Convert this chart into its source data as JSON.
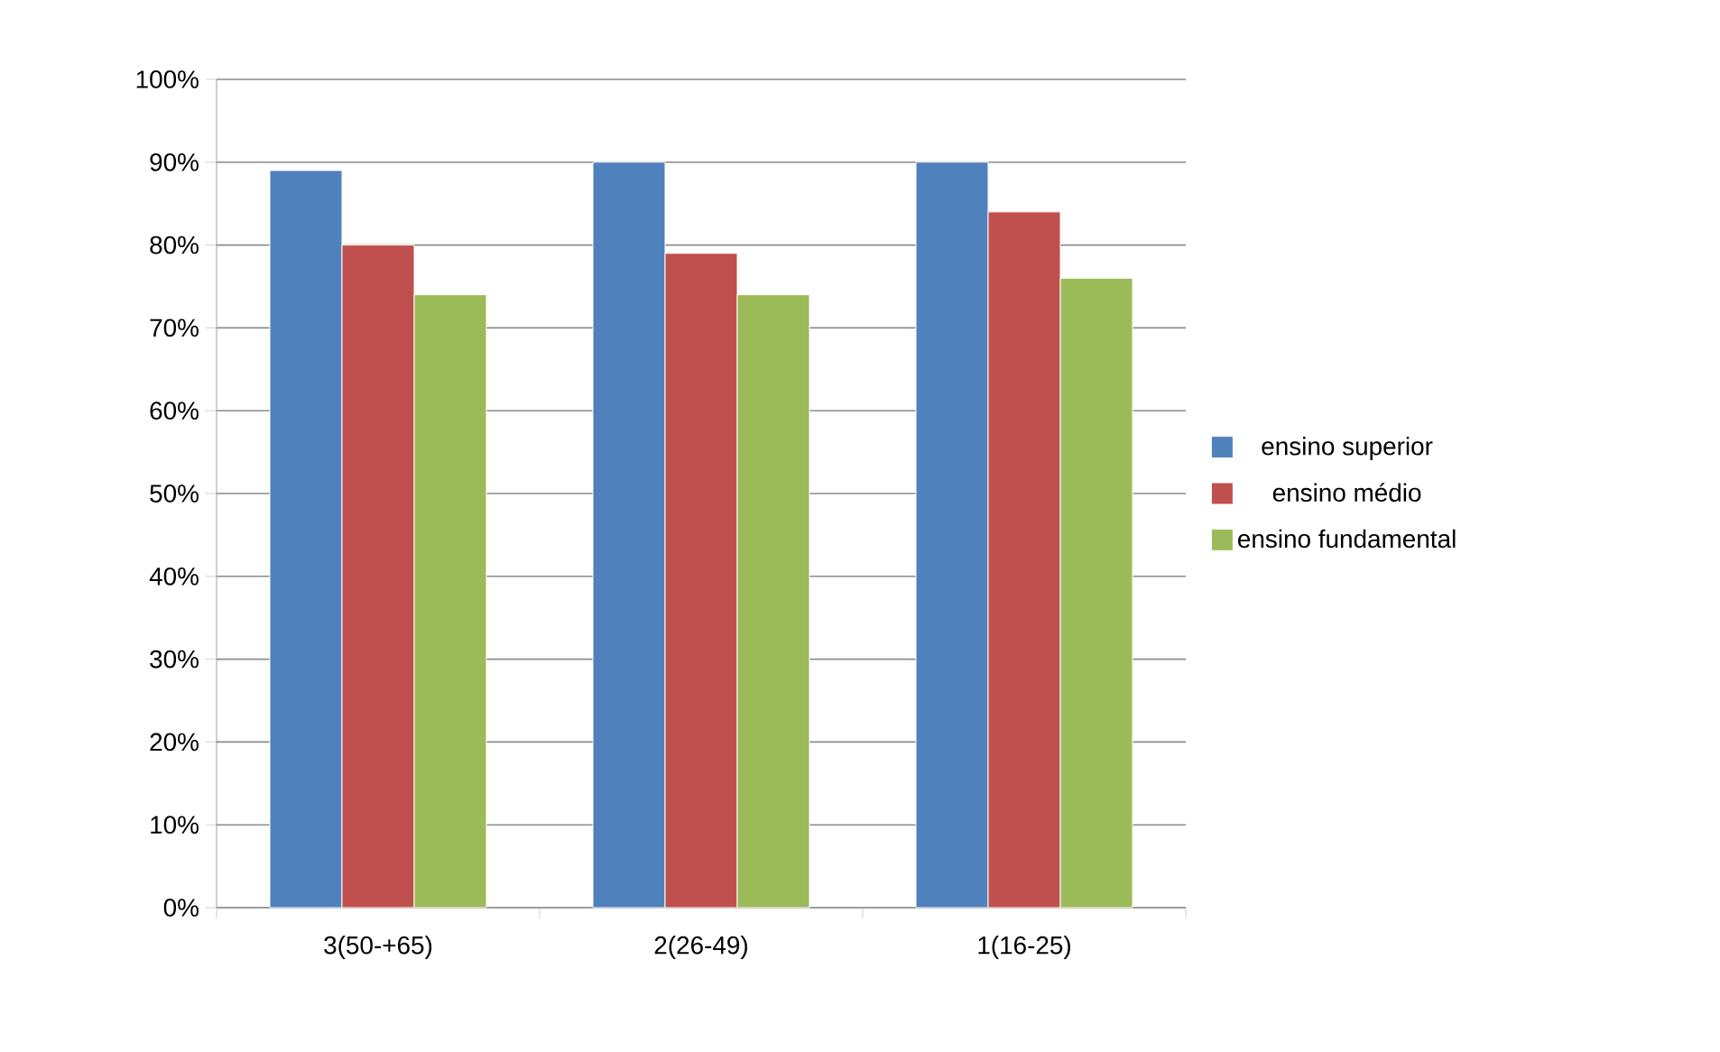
{
  "chart_data": {
    "type": "bar",
    "categories": [
      "3(50-+65)",
      "2(26-49)",
      "1(16-25)"
    ],
    "series": [
      {
        "name": "ensino superior",
        "color": "#4f81bd",
        "values": [
          89,
          90,
          90
        ]
      },
      {
        "name": "ensino médio",
        "color": "#c0504d",
        "values": [
          80,
          79,
          84
        ]
      },
      {
        "name": "ensino fundamental",
        "color": "#9bbb59",
        "values": [
          74,
          74,
          76
        ]
      }
    ],
    "ylim": [
      0,
      100
    ],
    "yticks": [
      {
        "value": 0,
        "label": "0%"
      },
      {
        "value": 10,
        "label": "10%"
      },
      {
        "value": 20,
        "label": "20%"
      },
      {
        "value": 30,
        "label": "30%"
      },
      {
        "value": 40,
        "label": "40%"
      },
      {
        "value": 50,
        "label": "50%"
      },
      {
        "value": 60,
        "label": "60%"
      },
      {
        "value": 70,
        "label": "70%"
      },
      {
        "value": 80,
        "label": "80%"
      },
      {
        "value": 90,
        "label": "90%"
      },
      {
        "value": 100,
        "label": "100%"
      }
    ],
    "grid": "y",
    "legend": "right"
  }
}
